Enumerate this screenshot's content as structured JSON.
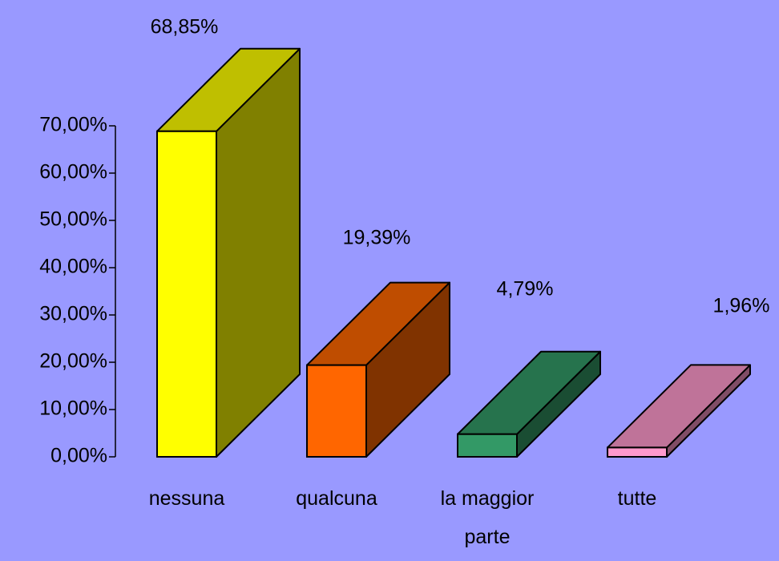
{
  "chart_data": {
    "type": "bar3d",
    "categories": [
      "nessuna",
      "qualcuna",
      "la maggior parte",
      "tutte"
    ],
    "values": [
      68.85,
      19.39,
      4.79,
      1.96
    ],
    "value_labels": [
      "68,85%",
      "19,39%",
      "4,79%",
      "1,96%"
    ],
    "colors": [
      "#ffff00",
      "#ff6600",
      "#339966",
      "#ff99cc"
    ],
    "ylim": [
      0,
      70
    ],
    "yticks": [
      {
        "value": 0,
        "label": "0,00%"
      },
      {
        "value": 10,
        "label": "10,00%"
      },
      {
        "value": 20,
        "label": "20,00%"
      },
      {
        "value": 30,
        "label": "30,00%"
      },
      {
        "value": 40,
        "label": "40,00%"
      },
      {
        "value": 50,
        "label": "50,00%"
      },
      {
        "value": 60,
        "label": "60,00%"
      },
      {
        "value": 70,
        "label": "70,00%"
      }
    ]
  }
}
